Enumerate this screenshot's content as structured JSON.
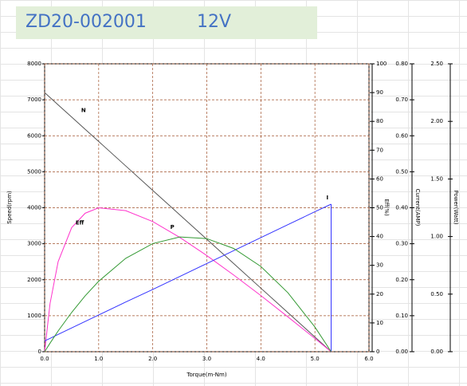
{
  "chart_data": {
    "type": "line",
    "title": "ZD20-002001",
    "subtitle": "12V",
    "xlabel": "Torque(m-Nm)",
    "ylabel": "Speed(rpm)",
    "y2label": "Eff(%)",
    "y3label": "Current(AMP)",
    "y4label": "Power(Watt)",
    "x": [
      0,
      0.1,
      0.25,
      0.5,
      0.75,
      1.0,
      1.5,
      2.0,
      2.5,
      3.0,
      3.5,
      4.0,
      4.5,
      5.0,
      5.3
    ],
    "xlim": [
      0,
      6
    ],
    "xticks": [
      {
        "value": 0,
        "label": "0.0"
      },
      {
        "value": 1,
        "label": "1.0"
      },
      {
        "value": 2,
        "label": "2.0"
      },
      {
        "value": 3,
        "label": "3.0"
      },
      {
        "value": 4,
        "label": "4.0"
      },
      {
        "value": 5,
        "label": "5.0"
      },
      {
        "value": 6,
        "label": "6.0"
      }
    ],
    "ylim": [
      0,
      8000
    ],
    "yticks": [
      0,
      1000,
      2000,
      3000,
      4000,
      5000,
      6000,
      7000,
      8000
    ],
    "y2lim": [
      0,
      100
    ],
    "y2ticks": [
      0,
      10,
      20,
      30,
      40,
      50,
      60,
      70,
      80,
      90,
      100
    ],
    "y3lim": [
      0,
      0.8
    ],
    "y3ticks": [
      {
        "value": 0,
        "label": "0.00"
      },
      {
        "value": 0.1,
        "label": "0.10"
      },
      {
        "value": 0.2,
        "label": "0.20"
      },
      {
        "value": 0.3,
        "label": "0.30"
      },
      {
        "value": 0.4,
        "label": "0.40"
      },
      {
        "value": 0.5,
        "label": "0.50"
      },
      {
        "value": 0.6,
        "label": "0.60"
      },
      {
        "value": 0.7,
        "label": "0.70"
      },
      {
        "value": 0.8,
        "label": "0.80"
      }
    ],
    "y4lim": [
      0,
      2.5
    ],
    "y4ticks": [
      {
        "value": 0,
        "label": "0.00"
      },
      {
        "value": 0.5,
        "label": "0.50"
      },
      {
        "value": 1,
        "label": "1.00"
      },
      {
        "value": 1.5,
        "label": "1.50"
      },
      {
        "value": 2,
        "label": "2.00"
      },
      {
        "value": 2.5,
        "label": "2.50"
      }
    ],
    "grid": true,
    "grid_color": "#a0522d",
    "series": [
      {
        "name": "N",
        "color": "#555555",
        "axis": "y",
        "values": [
          7200,
          7064,
          6860,
          6521,
          6181,
          5842,
          5162,
          4483,
          3804,
          3125,
          2445,
          1766,
          1087,
          408,
          0
        ]
      },
      {
        "name": "Eff",
        "color": "#ff33cc",
        "axis": "y2",
        "values": [
          0,
          16.7,
          31.3,
          43.1,
          48.1,
          50.0,
          49.0,
          45.2,
          39.7,
          33.4,
          26.6,
          19.5,
          12.1,
          4.6,
          0
        ]
      },
      {
        "name": "I",
        "color": "#3333ff",
        "axis": "y3",
        "values": [
          0.03,
          0.037,
          0.048,
          0.066,
          0.084,
          0.102,
          0.138,
          0.173,
          0.209,
          0.245,
          0.281,
          0.317,
          0.353,
          0.389,
          0.41
        ]
      },
      {
        "name": "P",
        "color": "#339933",
        "axis": "y4",
        "values": [
          0,
          0.074,
          0.18,
          0.341,
          0.485,
          0.612,
          0.811,
          0.939,
          0.996,
          0.982,
          0.896,
          0.74,
          0.512,
          0.214,
          0
        ]
      }
    ]
  }
}
